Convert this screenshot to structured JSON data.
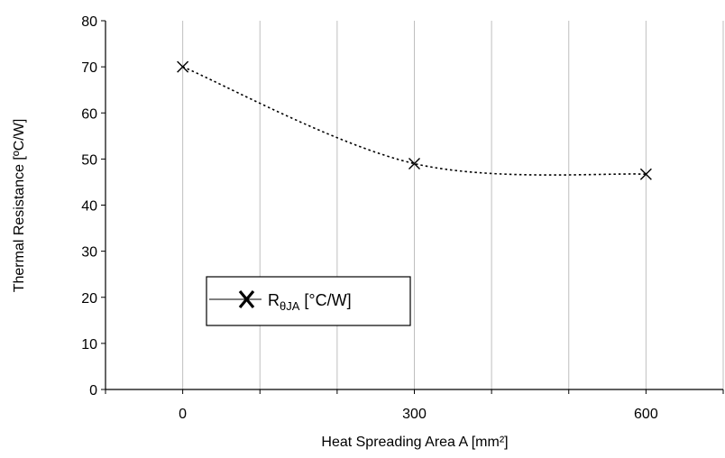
{
  "chart_data": {
    "type": "line",
    "title": "",
    "xlabel": "Heat Spreading Area A [mm²]",
    "ylabel": "Thermal Resistance [ºC/W]",
    "x_ticks": [
      0,
      300,
      600
    ],
    "x_tick_labels": [
      "0",
      "300",
      "600"
    ],
    "xlim": [
      -100,
      700
    ],
    "ylim": [
      0,
      80
    ],
    "y_ticks": [
      0,
      10,
      20,
      30,
      40,
      50,
      60,
      70,
      80
    ],
    "y_tick_labels": [
      "0",
      "10",
      "20",
      "30",
      "40",
      "50",
      "60",
      "70",
      "80"
    ],
    "grid": "vertical",
    "legend_placement": "center-left",
    "series": [
      {
        "name": "R",
        "name_subscript": "θJA",
        "name_suffix": " [°C/W]",
        "x": [
          0,
          300,
          600
        ],
        "y": [
          70,
          49,
          46.7
        ],
        "marker": "x",
        "line_style": "dotted",
        "color": "#000000"
      }
    ]
  }
}
